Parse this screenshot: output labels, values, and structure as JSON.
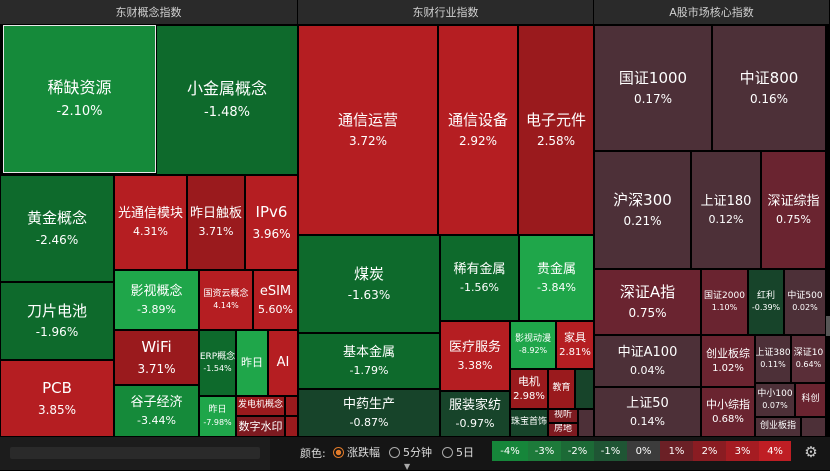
{
  "headers": {
    "concept": "东财概念指数",
    "industry": "东财行业指数",
    "core": "A股市场核心指数"
  },
  "cells": {
    "xiquezy": {
      "name": "稀缺资源",
      "pct": "-2.10%"
    },
    "xiaojs": {
      "name": "小金属概念",
      "pct": "-1.48%"
    },
    "huangjin": {
      "name": "黄金概念",
      "pct": "-2.46%"
    },
    "guangtx": {
      "name": "光通信模块",
      "pct": "4.31%"
    },
    "zuorich": {
      "name": "昨日触板",
      "pct": "3.71%"
    },
    "ipv6": {
      "name": "IPv6",
      "pct": "3.96%"
    },
    "yingshi": {
      "name": "影视概念",
      "pct": "-3.89%"
    },
    "guoziyun": {
      "name": "国资云概念",
      "pct": "4.14%"
    },
    "esim": {
      "name": "eSIM",
      "pct": "5.60%"
    },
    "daopian": {
      "name": "刀片电池",
      "pct": "-1.96%"
    },
    "wifi": {
      "name": "WiFi",
      "pct": "3.71%"
    },
    "erp": {
      "name": "ERP概念",
      "pct": "-1.54%"
    },
    "zuori2": {
      "name": "昨日",
      "pct": "-7.98%"
    },
    "zuori3": {
      "name": "昨日",
      "pct": ""
    },
    "ai": {
      "name": "AI",
      "pct": ""
    },
    "pcb": {
      "name": "PCB",
      "pct": "3.85%"
    },
    "guzi": {
      "name": "谷子经济",
      "pct": "-3.44%"
    },
    "fadianji": {
      "name": "发电机概念",
      "pct": ""
    },
    "shuzi": {
      "name": "数字水印",
      "pct": ""
    },
    "tongxinyy": {
      "name": "通信运营",
      "pct": "3.72%"
    },
    "tongxinsb": {
      "name": "通信设备",
      "pct": "2.92%"
    },
    "dianzi": {
      "name": "电子元件",
      "pct": "2.58%"
    },
    "meitan": {
      "name": "煤炭",
      "pct": "-1.63%"
    },
    "xiyoujs": {
      "name": "稀有金属",
      "pct": "-1.56%"
    },
    "guijs": {
      "name": "贵金属",
      "pct": "-3.84%"
    },
    "jibenjs": {
      "name": "基本金属",
      "pct": "-1.79%"
    },
    "yiliao": {
      "name": "医疗服务",
      "pct": "3.38%"
    },
    "yingshidm": {
      "name": "影视动漫",
      "pct": "-8.92%"
    },
    "jiaju": {
      "name": "家具",
      "pct": "2.81%"
    },
    "dianji": {
      "name": "电机",
      "pct": "2.98%"
    },
    "jiaoyu": {
      "name": "教育",
      "pct": ""
    },
    "zhongyao": {
      "name": "中药生产",
      "pct": "-0.87%"
    },
    "fuzhuang": {
      "name": "服装家纺",
      "pct": "-0.97%"
    },
    "zhubao": {
      "name": "珠宝首饰",
      "pct": ""
    },
    "shiting": {
      "name": "视听",
      "pct": ""
    },
    "fangdi": {
      "name": "房地",
      "pct": ""
    },
    "gz1000": {
      "name": "国证1000",
      "pct": "0.17%"
    },
    "zz800": {
      "name": "中证800",
      "pct": "0.16%"
    },
    "hs300": {
      "name": "沪深300",
      "pct": "0.21%"
    },
    "sz180": {
      "name": "上证180",
      "pct": "0.12%"
    },
    "szzz": {
      "name": "深证综指",
      "pct": "0.75%"
    },
    "szA": {
      "name": "深证A指",
      "pct": "0.75%"
    },
    "gz2000": {
      "name": "国证2000",
      "pct": "1.10%"
    },
    "hongli": {
      "name": "红利",
      "pct": "-0.39%"
    },
    "zz500": {
      "name": "中证500",
      "pct": "0.02%"
    },
    "zzA100": {
      "name": "中证A100",
      "pct": "0.04%"
    },
    "chuangyb": {
      "name": "创业板综",
      "pct": "1.02%"
    },
    "sz380": {
      "name": "上证380",
      "pct": "0.11%"
    },
    "sz10": {
      "name": "深证10",
      "pct": "0.64%"
    },
    "sz50": {
      "name": "上证50",
      "pct": "0.14%"
    },
    "zxzz": {
      "name": "中小综指",
      "pct": "0.68%"
    },
    "zx100": {
      "name": "中小100",
      "pct": "0.07%"
    },
    "kechuang": {
      "name": "科创",
      "pct": ""
    },
    "chuangyez": {
      "name": "创业板指",
      "pct": ""
    }
  },
  "toolbar": {
    "color_label": "颜色:",
    "options": [
      "涨跌幅",
      "5分钟",
      "5日"
    ],
    "selected": "涨跌幅"
  },
  "legend": [
    {
      "label": "-4%",
      "color": "#16863a"
    },
    {
      "label": "-3%",
      "color": "#1d7a3a"
    },
    {
      "label": "-2%",
      "color": "#1c6a36"
    },
    {
      "label": "-1%",
      "color": "#1f5534"
    },
    {
      "label": "0%",
      "color": "#3c3c3c"
    },
    {
      "label": "1%",
      "color": "#6b2026"
    },
    {
      "label": "2%",
      "color": "#8a1c22"
    },
    {
      "label": "3%",
      "color": "#a51c22"
    },
    {
      "label": "4%",
      "color": "#bf1e24"
    }
  ],
  "icons": {
    "settings": "gear-icon",
    "down": "chevron-down-icon"
  }
}
